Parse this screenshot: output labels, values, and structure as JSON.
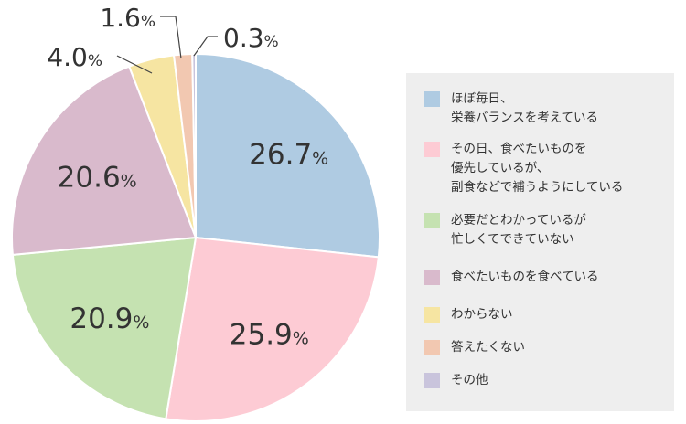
{
  "chart_data": {
    "type": "pie",
    "categories": [
      "ほぼ毎日、\n栄養バランスを考えている",
      "その日、食べたいものを\n優先しているが、\n副食などで補うようにしている",
      "必要だとわかっているが\n忙しくてできていない",
      "食べたいものを食べている",
      "わからない",
      "答えたくない",
      "その他"
    ],
    "values": [
      26.7,
      25.9,
      20.9,
      20.6,
      4.0,
      1.6,
      0.3
    ],
    "value_labels": [
      "26.7",
      "25.9",
      "20.9",
      "20.6",
      "4.0",
      "1.6",
      "0.3"
    ],
    "unit": "%",
    "colors": [
      "#afcbe2",
      "#fdcbd4",
      "#c5e2b1",
      "#d9bacc",
      "#f6e5a2",
      "#f2c8b1",
      "#c9c4dc"
    ],
    "legend_position": "right",
    "start_angle": "top, clockwise"
  }
}
